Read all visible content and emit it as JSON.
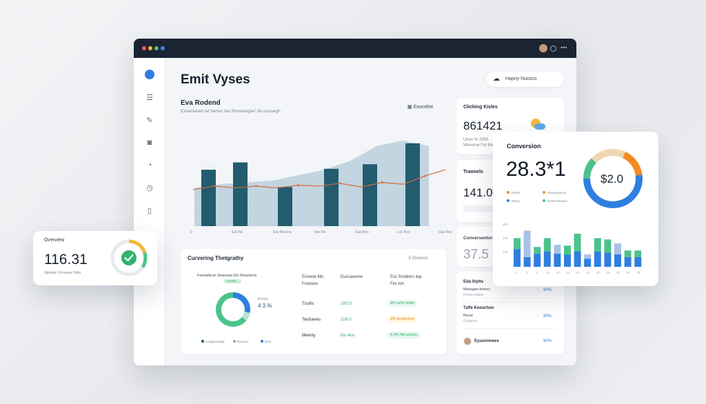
{
  "header": {
    "title": "Emit Vyses",
    "user_chip": "Hapny Nuoscs"
  },
  "sidebar": {
    "items": [
      {
        "icon": "home-icon",
        "glyph": "●"
      },
      {
        "icon": "menu-icon",
        "glyph": "☰"
      },
      {
        "icon": "pen-icon",
        "glyph": "✎"
      },
      {
        "icon": "camera-icon",
        "glyph": "◙"
      },
      {
        "icon": "power-icon",
        "glyph": "◔"
      },
      {
        "icon": "clock-icon",
        "glyph": "◷"
      },
      {
        "icon": "document-icon",
        "glyph": "▯"
      }
    ]
  },
  "main_chart": {
    "title": "Eva Rodend",
    "subtitle": "Exsectered ret henes tas Presedsgse' tte oussegh",
    "action": "Exoceltst",
    "chart_data": {
      "type": "bar",
      "bars": [
        62,
        70,
        43,
        63,
        68,
        91
      ],
      "line": [
        40,
        44,
        42,
        44,
        42,
        45,
        44,
        47,
        43,
        48,
        46,
        55,
        62
      ],
      "area": [
        42,
        46,
        48,
        50,
        56,
        62,
        72,
        88,
        94,
        88
      ],
      "y_ticks": [
        "",
        "",
        "",
        "",
        "",
        "",
        ""
      ],
      "x_ticks": [
        "0",
        "Eac Ns",
        "Ess Roscna",
        "Nos No",
        "Eas Nos",
        "Loc Nos",
        "Gas Nos"
      ],
      "ylim": [
        0,
        100
      ]
    }
  },
  "cards": {
    "clicking": {
      "title": "Clicking Kisles",
      "value": "861421",
      "sub": "Ulren % 2030",
      "sub2": "Wesome Fet Bes"
    },
    "transacts": {
      "title": "Traonels",
      "value": "141.0"
    },
    "conversions": {
      "title": "Conversentors",
      "value": "37.5"
    },
    "tasks": [
      {
        "title": "Eda Stytts",
        "line1": "Managre-kreors",
        "line2": "Fnees.coisco",
        "pct": "90%"
      },
      {
        "title": "Taffe Keeuchon",
        "line1": "Riuse",
        "line2": "Gobuoos",
        "pct": "90%"
      },
      {
        "title": "Eyuoonnees",
        "line1": "",
        "line2": "",
        "pct": "90%"
      }
    ]
  },
  "bottom": {
    "title": "Curvering Thetgrathy",
    "action": "Elownce",
    "donut_title": "Feostelicsn Seaceea Dic Reactions",
    "donut_chip": "Eeses",
    "donut_value": "4 3.%",
    "donut_value_label": "Eresst",
    "donut_legend": [
      "Leogoonedeg",
      "Erovnso",
      "Ems"
    ],
    "table_headers": [
      "Exoeret titls",
      "Fusoeos",
      "Duxsaoeme",
      "Ess Stsbkers ilay",
      "Fes ton"
    ],
    "rows": [
      {
        "name": "Tusfis",
        "value": "100.0",
        "change": "4% ye% hottin"
      },
      {
        "name": "Tectiaves",
        "value": "116.0",
        "change": "4% sn-kennos"
      },
      {
        "name": "Memty",
        "value": "Ns.4os",
        "change": "4.4% Ntt-ansion"
      }
    ]
  },
  "overview": {
    "title": "Overview",
    "value": "116.31",
    "sub": "Apinste Omeses Odis"
  },
  "conversion": {
    "title": "Conversion",
    "value": "28.3*1",
    "donut_label": "$2.0",
    "legend": [
      "Resos",
      "Sesunesecos",
      "Setoy",
      "Detetrmanisso"
    ],
    "bar_ticks": [
      "2",
      "3",
      "3",
      "10",
      "10",
      "10",
      "10",
      "10",
      "20",
      "20",
      "20",
      "20",
      "20"
    ],
    "chart_data": {
      "type": "bar",
      "stacked": [
        [
          40,
          25
        ],
        [
          22,
          60
        ],
        [
          30,
          15
        ],
        [
          35,
          30
        ],
        [
          30,
          20
        ],
        [
          28,
          20
        ],
        [
          35,
          40
        ],
        [
          18,
          10
        ],
        [
          35,
          30
        ],
        [
          32,
          30
        ],
        [
          28,
          25
        ],
        [
          22,
          15
        ],
        [
          22,
          15
        ]
      ],
      "y_ticks": [
        "300",
        "200",
        "100"
      ]
    }
  },
  "colors": {
    "bar_dark": "#235b6f",
    "area": "#b9cfdc",
    "line": "#d66a3a",
    "blue": "#2f7fe0",
    "green": "#4cc38a",
    "orange": "#f28b20",
    "sand": "#efd7b0"
  }
}
